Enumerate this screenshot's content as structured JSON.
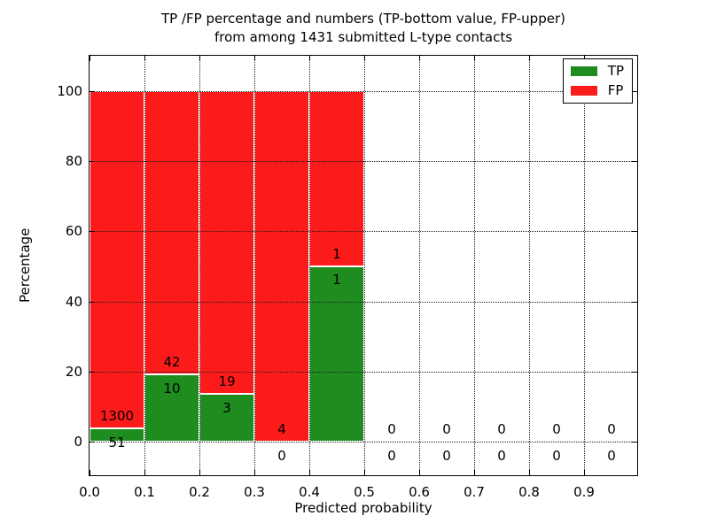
{
  "chart_data": {
    "type": "bar",
    "stacked": true,
    "title_line1": "TP /FP percentage and numbers (TP-bottom value, FP-upper)",
    "title_line2": "from among 1431 submitted L-type contacts",
    "xlabel": "Predicted probability",
    "ylabel": "Percentage",
    "xlim": [
      0.0,
      1.0
    ],
    "ylim": [
      -10,
      110
    ],
    "bin_width": 0.1,
    "xticks": [
      {
        "value": 0.0,
        "label": "0.0"
      },
      {
        "value": 0.1,
        "label": "0.1"
      },
      {
        "value": 0.2,
        "label": "0.2"
      },
      {
        "value": 0.3,
        "label": "0.3"
      },
      {
        "value": 0.4,
        "label": "0.4"
      },
      {
        "value": 0.5,
        "label": "0.5"
      },
      {
        "value": 0.6,
        "label": "0.6"
      },
      {
        "value": 0.7,
        "label": "0.7"
      },
      {
        "value": 0.8,
        "label": "0.8"
      },
      {
        "value": 0.9,
        "label": "0.9"
      }
    ],
    "yticks": [
      {
        "value": 0,
        "label": "0"
      },
      {
        "value": 20,
        "label": "20"
      },
      {
        "value": 40,
        "label": "40"
      },
      {
        "value": 60,
        "label": "60"
      },
      {
        "value": 80,
        "label": "80"
      },
      {
        "value": 100,
        "label": "100"
      }
    ],
    "series": [
      {
        "name": "TP",
        "color": "#1f8c1f"
      },
      {
        "name": "FP",
        "color": "#fb1b1b"
      }
    ],
    "bins": [
      {
        "x0": 0.0,
        "tp_count": "51",
        "fp_count": "1300",
        "tp_pct": 3.775,
        "fp_pct": 96.225
      },
      {
        "x0": 0.1,
        "tp_count": "10",
        "fp_count": "42",
        "tp_pct": 19.231,
        "fp_pct": 80.769
      },
      {
        "x0": 0.2,
        "tp_count": "3",
        "fp_count": "19",
        "tp_pct": 13.636,
        "fp_pct": 86.364
      },
      {
        "x0": 0.3,
        "tp_count": "0",
        "fp_count": "4",
        "tp_pct": 0,
        "fp_pct": 100
      },
      {
        "x0": 0.4,
        "tp_count": "1",
        "fp_count": "1",
        "tp_pct": 50,
        "fp_pct": 50
      },
      {
        "x0": 0.5,
        "tp_count": "0",
        "fp_count": "0",
        "tp_pct": 0,
        "fp_pct": 0
      },
      {
        "x0": 0.6,
        "tp_count": "0",
        "fp_count": "0",
        "tp_pct": 0,
        "fp_pct": 0
      },
      {
        "x0": 0.7,
        "tp_count": "0",
        "fp_count": "0",
        "tp_pct": 0,
        "fp_pct": 0
      },
      {
        "x0": 0.8,
        "tp_count": "0",
        "fp_count": "0",
        "tp_pct": 0,
        "fp_pct": 0
      },
      {
        "x0": 0.9,
        "tp_count": "0",
        "fp_count": "0",
        "tp_pct": 0,
        "fp_pct": 0
      }
    ],
    "grid": {
      "style": "dotted",
      "color": "#1c1c1c",
      "on": true
    },
    "legend_position": "upper right"
  }
}
